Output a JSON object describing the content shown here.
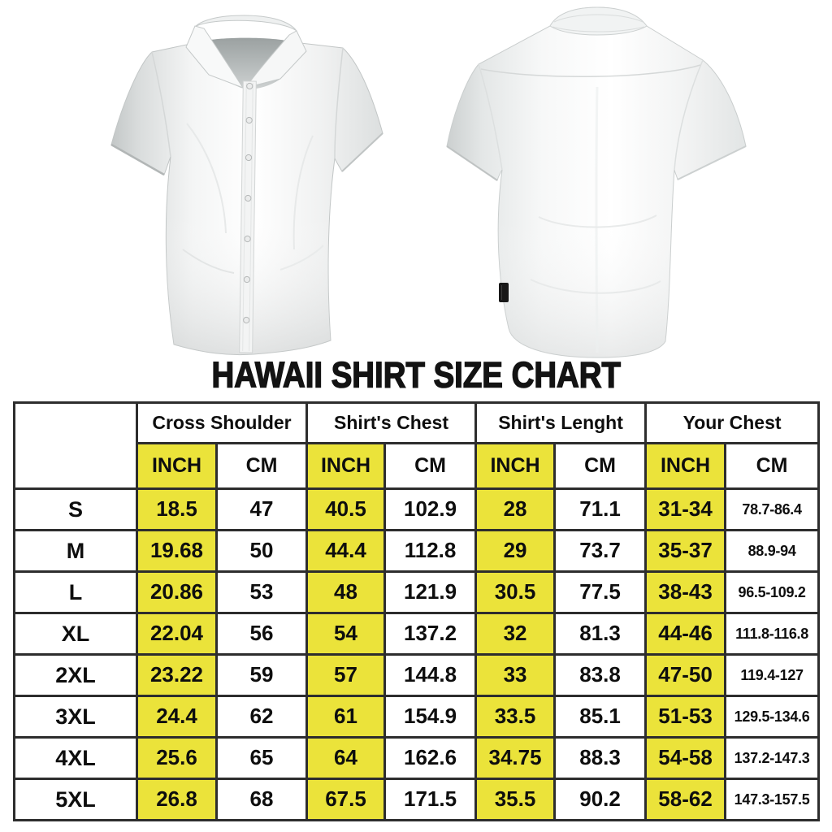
{
  "chart_data": {
    "type": "table",
    "title": "HAWAII SHIRT SIZE CHART",
    "units": {
      "inch": "INCH",
      "cm": "CM"
    },
    "column_groups": [
      {
        "label": "Cross Shoulder"
      },
      {
        "label": "Shirt's Chest"
      },
      {
        "label": "Shirt's Lenght"
      },
      {
        "label": "Your Chest"
      }
    ],
    "rows": [
      [
        "S",
        "18.5",
        "47",
        "40.5",
        "102.9",
        "28",
        "71.1",
        "31-34",
        "78.7-86.4"
      ],
      [
        "M",
        "19.68",
        "50",
        "44.4",
        "112.8",
        "29",
        "73.7",
        "35-37",
        "88.9-94"
      ],
      [
        "L",
        "20.86",
        "53",
        "48",
        "121.9",
        "30.5",
        "77.5",
        "38-43",
        "96.5-109.2"
      ],
      [
        "XL",
        "22.04",
        "56",
        "54",
        "137.2",
        "32",
        "81.3",
        "44-46",
        "111.8-116.8"
      ],
      [
        "2XL",
        "23.22",
        "59",
        "57",
        "144.8",
        "33",
        "83.8",
        "47-50",
        "119.4-127"
      ],
      [
        "3XL",
        "24.4",
        "62",
        "61",
        "154.9",
        "33.5",
        "85.1",
        "51-53",
        "129.5-134.6"
      ],
      [
        "4XL",
        "25.6",
        "65",
        "64",
        "162.6",
        "34.75",
        "88.3",
        "54-58",
        "137.2-147.3"
      ],
      [
        "5XL",
        "26.8",
        "68",
        "67.5",
        "171.5",
        "35.5",
        "90.2",
        "58-62",
        "147.3-157.5"
      ]
    ],
    "highlight_color": "#ebe33a",
    "grid_color": "#2d2d2d",
    "layout": {
      "inch_columns_highlighted": true,
      "legend": "none",
      "grid": "on"
    }
  }
}
